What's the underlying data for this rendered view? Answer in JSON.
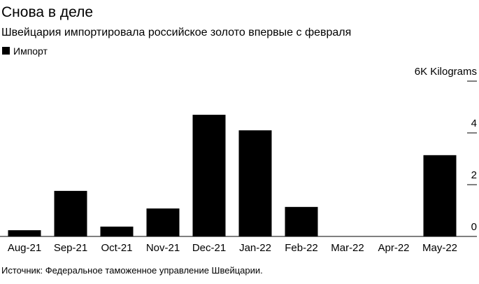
{
  "chart_data": {
    "type": "bar",
    "title": "Снова в деле",
    "subtitle": "Швейцария импортировала российское золото впервые с февраля",
    "source": "Источник: Федеральное таможенное управление Швейцарии.",
    "categories": [
      "Aug-21",
      "Sep-21",
      "Oct-21",
      "Nov-21",
      "Dec-21",
      "Jan-22",
      "Feb-22",
      "Mar-22",
      "Apr-22",
      "May-22"
    ],
    "series": [
      {
        "name": "Импорт",
        "color": "#000000",
        "values": [
          0.24,
          1.76,
          0.38,
          1.08,
          4.7,
          4.1,
          1.14,
          0,
          0,
          3.14
        ]
      }
    ],
    "ylim": [
      0,
      6
    ],
    "yticks": [
      0,
      2,
      4,
      {
        "value": 6,
        "label": "6K Kilograms"
      }
    ],
    "legend": "top-left"
  }
}
